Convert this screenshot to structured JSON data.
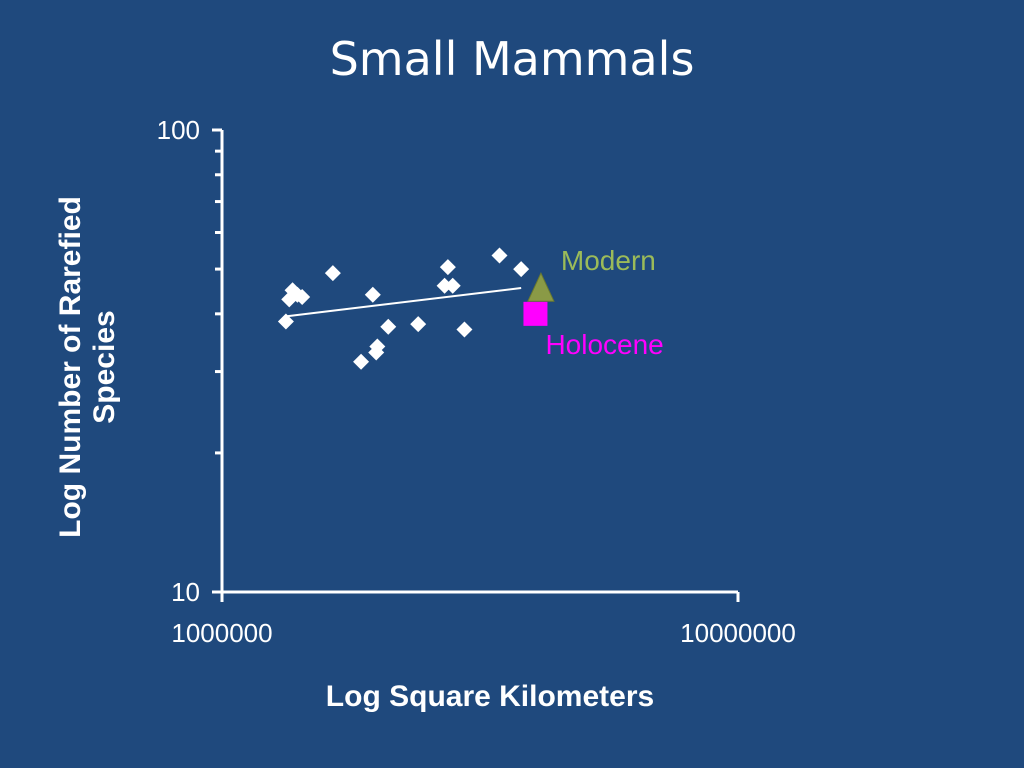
{
  "chart_data": {
    "type": "scatter",
    "title": "Small Mammals",
    "xlabel": "Log Square Kilometers",
    "ylabel_lines": [
      "Log Number of Rarefied",
      "Species"
    ],
    "x_scale": "log",
    "y_scale": "log",
    "xlim": [
      1000000,
      10000000
    ],
    "ylim": [
      10,
      100
    ],
    "x_ticks": [
      "1000000",
      "10000000"
    ],
    "y_ticks": [
      "10",
      "100"
    ],
    "grid": false,
    "series": [
      {
        "marker": "diamond",
        "color": "#ffffff",
        "points": [
          {
            "x": 1330000,
            "y": 38.5
          },
          {
            "x": 1350000,
            "y": 43.0
          },
          {
            "x": 1370000,
            "y": 45.0
          },
          {
            "x": 1400000,
            "y": 44.0
          },
          {
            "x": 1430000,
            "y": 43.5
          },
          {
            "x": 1640000,
            "y": 49.0
          },
          {
            "x": 1860000,
            "y": 31.5
          },
          {
            "x": 1960000,
            "y": 44.0
          },
          {
            "x": 1990000,
            "y": 33.0
          },
          {
            "x": 2000000,
            "y": 34.0
          },
          {
            "x": 2100000,
            "y": 37.5
          },
          {
            "x": 2400000,
            "y": 38.0
          },
          {
            "x": 2700000,
            "y": 46.0
          },
          {
            "x": 2740000,
            "y": 50.5
          },
          {
            "x": 2800000,
            "y": 46.0
          },
          {
            "x": 2950000,
            "y": 37.0
          },
          {
            "x": 3450000,
            "y": 53.5
          },
          {
            "x": 3800000,
            "y": 50.0
          }
        ]
      },
      {
        "name": "Modern",
        "marker": "triangle",
        "color": "#8a9a46",
        "label_color": "#9bbb59",
        "points": [
          {
            "x": 4150000,
            "y": 45.0
          }
        ]
      },
      {
        "name": "Holocene",
        "marker": "square",
        "color": "#ff00ff",
        "label_color": "#ff00ff",
        "points": [
          {
            "x": 4050000,
            "y": 40.0
          }
        ]
      }
    ],
    "trendline": {
      "color": "#ffffff",
      "points": [
        {
          "x": 1330000,
          "y": 39.5
        },
        {
          "x": 3800000,
          "y": 45.5
        }
      ]
    }
  }
}
